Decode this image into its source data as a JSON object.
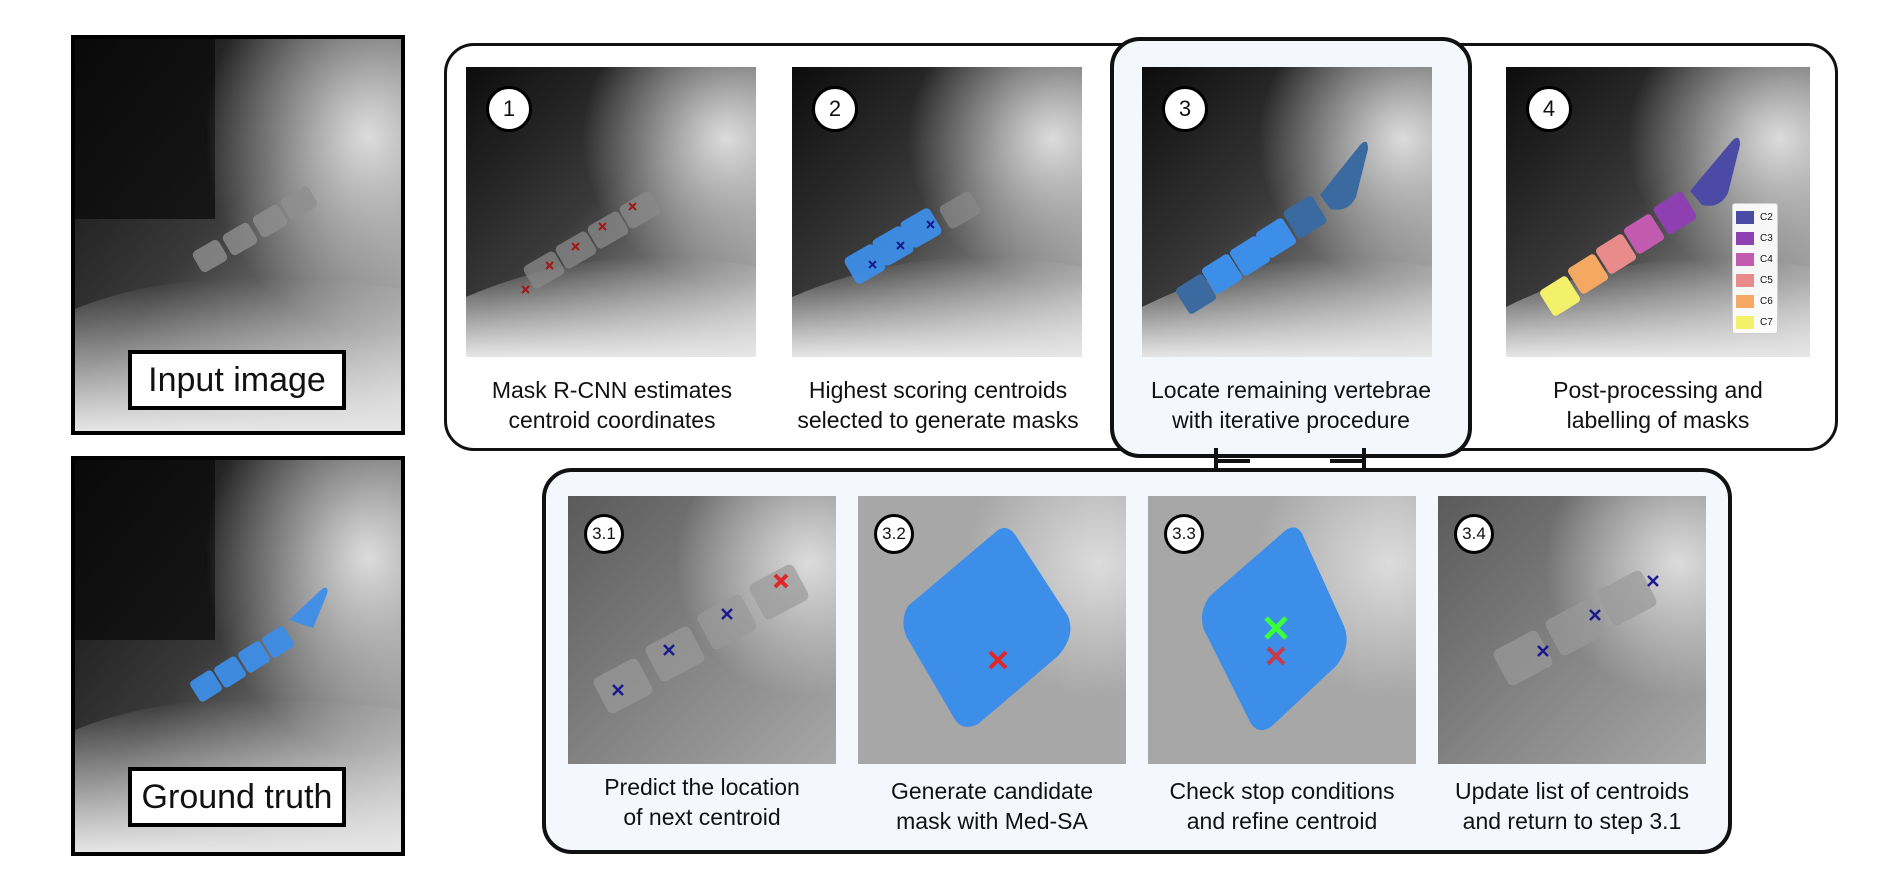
{
  "left_panel": {
    "input_label": "Input image",
    "ground_truth_label": "Ground truth"
  },
  "steps": [
    {
      "num": "1",
      "caption_line1": "Mask R-CNN estimates",
      "caption_line2": "centroid coordinates"
    },
    {
      "num": "2",
      "caption_line1": "Highest scoring centroids",
      "caption_line2": "selected to generate masks"
    },
    {
      "num": "3",
      "caption_line1": "Locate remaining vertebrae",
      "caption_line2": "with iterative procedure"
    },
    {
      "num": "4",
      "caption_line1": "Post-processing and",
      "caption_line2": "labelling of masks"
    }
  ],
  "substeps": [
    {
      "num": "3.1",
      "caption_line1": "Predict the location",
      "caption_line2": "of next centroid"
    },
    {
      "num": "3.2",
      "caption_line1": "Generate candidate",
      "caption_line2": "mask with Med-SA"
    },
    {
      "num": "3.3",
      "caption_line1": "Check stop conditions",
      "caption_line2": "and refine centroid"
    },
    {
      "num": "3.4",
      "caption_line1": "Update list of centroids",
      "caption_line2": "and return to step 3.1"
    }
  ],
  "legend": [
    {
      "label": "C2",
      "color": "#4b4aa4"
    },
    {
      "label": "C3",
      "color": "#8e3fb0"
    },
    {
      "label": "C4",
      "color": "#c25bb0"
    },
    {
      "label": "C5",
      "color": "#e98b8a"
    },
    {
      "label": "C6",
      "color": "#f4a861"
    },
    {
      "label": "C7",
      "color": "#f3f06a"
    }
  ],
  "colors": {
    "mask_blue": "#3d8ee8",
    "centroid_dark_red": "#a01818",
    "centroid_navy": "#1a1a8c",
    "centroid_red": "#e02828",
    "centroid_green": "#3cff3c"
  }
}
